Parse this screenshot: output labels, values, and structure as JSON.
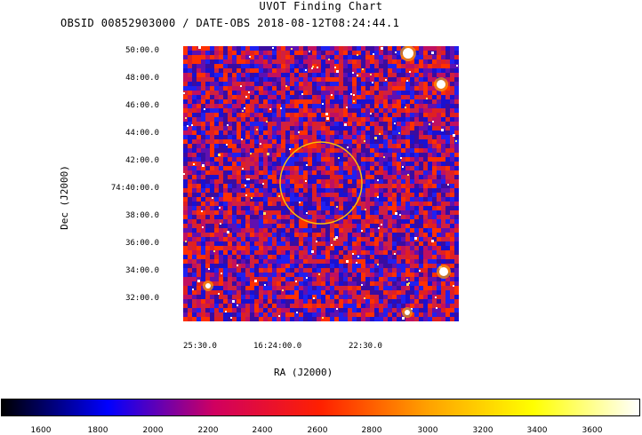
{
  "title": "UVOT Finding Chart",
  "subtitle": "OBSID 00852903000 / DATE-OBS 2018-08-12T08:24:44.1",
  "chart_data": {
    "type": "heatmap",
    "title": "UVOT Finding Chart",
    "subtitle": "OBSID 00852903000 / DATE-OBS 2018-08-12T08:24:44.1",
    "xlabel": "RA (J2000)",
    "ylabel": "Dec (J2000)",
    "x_ticks": [
      "25:30.0",
      "16:24:00.0",
      "22:30.0"
    ],
    "y_ticks": [
      "50:00.0",
      "48:00.0",
      "46:00.0",
      "44:00.0",
      "42:00.0",
      "74:40:00.0",
      "38:00.0",
      "36:00.0",
      "34:00.0",
      "32:00.0"
    ],
    "colorbar": {
      "ticks": [
        "1600",
        "1800",
        "2000",
        "2200",
        "2400",
        "2600",
        "2800",
        "3000",
        "3200",
        "3400",
        "3600"
      ],
      "colors": [
        "#000000",
        "#0000ff",
        "#d00060",
        "#ff2000",
        "#ffa000",
        "#ffff00",
        "#ffffff"
      ]
    },
    "marker": {
      "shape": "circle",
      "color": "#ffc000"
    }
  }
}
